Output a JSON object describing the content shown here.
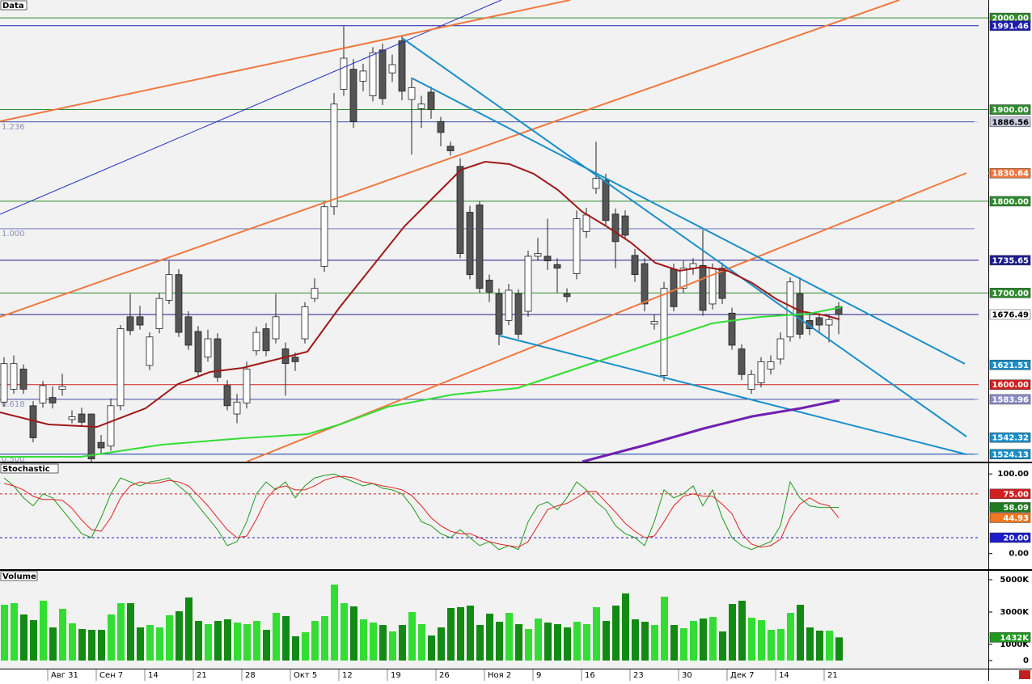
{
  "chart_data": [
    {
      "type": "candlestick",
      "title": "Data",
      "categories": [
        null,
        null,
        null,
        null,
        null,
        "Авг 31",
        null,
        null,
        null,
        null,
        "Сен 7",
        null,
        null,
        null,
        null,
        "14",
        null,
        null,
        null,
        null,
        "21",
        null,
        null,
        null,
        null,
        "28",
        null,
        null,
        null,
        null,
        "Окт 5",
        null,
        null,
        null,
        null,
        "12",
        null,
        null,
        null,
        null,
        "19",
        null,
        null,
        null,
        null,
        "26",
        null,
        null,
        null,
        null,
        "Ноя 2",
        null,
        null,
        null,
        null,
        "9",
        null,
        null,
        null,
        null,
        "16",
        null,
        null,
        null,
        null,
        "23",
        null,
        null,
        null,
        null,
        "30",
        null,
        null,
        null,
        null,
        "Дек 7",
        null,
        null,
        null,
        null,
        "14",
        null,
        null,
        null,
        null,
        "21",
        null
      ],
      "open": [
        1581,
        1595,
        1617,
        1577,
        1580,
        1586,
        1595,
        1562,
        1568,
        1568,
        1537,
        1533,
        1577,
        1674,
        1674,
        1621,
        1661,
        1692,
        1720,
        1674,
        1658,
        1630,
        1650,
        1599,
        1568,
        1580,
        1637,
        1661,
        1650,
        1639,
        1630,
        1650,
        1694,
        1729,
        1794,
        1922,
        1944,
        1931,
        1915,
        1965,
        1940,
        1975,
        1911,
        1901,
        1919,
        1887,
        1860,
        1838,
        1788,
        1796,
        1714,
        1699,
        1670,
        1699,
        1680,
        1740,
        1740,
        1731,
        1699,
        1721,
        1767,
        1814,
        1823,
        1786,
        1784,
        1741,
        1732,
        1666,
        1610,
        1726,
        1705,
        1727,
        1730,
        1688,
        1727,
        1678,
        1639,
        1595,
        1602,
        1617,
        1628,
        1652,
        1699,
        1670,
        1673,
        1665,
        1685
      ],
      "high": [
        1630,
        1632,
        1622,
        1582,
        1604,
        1598,
        1612,
        1572,
        1575,
        1568,
        1545,
        1585,
        1665,
        1699,
        1686,
        1657,
        1700,
        1735,
        1726,
        1680,
        1664,
        1660,
        1656,
        1605,
        1590,
        1625,
        1663,
        1667,
        1699,
        1646,
        1635,
        1690,
        1716,
        1800,
        1918,
        1991,
        1955,
        1950,
        1968,
        1972,
        1960,
        1980,
        1935,
        1915,
        1925,
        1892,
        1865,
        1847,
        1795,
        1800,
        1720,
        1705,
        1710,
        1704,
        1746,
        1760,
        1781,
        1738,
        1705,
        1790,
        1793,
        1865,
        1830,
        1792,
        1790,
        1748,
        1738,
        1676,
        1712,
        1732,
        1735,
        1738,
        1769,
        1732,
        1733,
        1684,
        1644,
        1616,
        1630,
        1632,
        1657,
        1717,
        1717,
        1676,
        1678,
        1676,
        1690
      ],
      "low": [
        1576,
        1590,
        1590,
        1537,
        1575,
        1574,
        1588,
        1558,
        1554,
        1516,
        1525,
        1528,
        1572,
        1654,
        1660,
        1616,
        1656,
        1688,
        1652,
        1638,
        1608,
        1625,
        1603,
        1572,
        1558,
        1574,
        1632,
        1631,
        1645,
        1588,
        1615,
        1645,
        1690,
        1723,
        1785,
        1915,
        1880,
        1920,
        1909,
        1905,
        1930,
        1910,
        1851,
        1880,
        1890,
        1860,
        1850,
        1738,
        1715,
        1700,
        1690,
        1643,
        1665,
        1650,
        1674,
        1735,
        1725,
        1700,
        1690,
        1715,
        1760,
        1808,
        1773,
        1727,
        1758,
        1712,
        1680,
        1660,
        1604,
        1680,
        1700,
        1720,
        1675,
        1682,
        1688,
        1638,
        1605,
        1590,
        1597,
        1611,
        1622,
        1647,
        1650,
        1654,
        1658,
        1646,
        1655
      ],
      "close": [
        1623,
        1623,
        1595,
        1542,
        1599,
        1580,
        1598,
        1565,
        1559,
        1519,
        1531,
        1577,
        1661,
        1659,
        1665,
        1652,
        1694,
        1720,
        1657,
        1643,
        1614,
        1650,
        1608,
        1577,
        1581,
        1617,
        1657,
        1637,
        1674,
        1623,
        1625,
        1685,
        1705,
        1794,
        1906,
        1956,
        1887,
        1942,
        1962,
        1912,
        1949,
        1920,
        1924,
        1906,
        1900,
        1875,
        1855,
        1743,
        1720,
        1705,
        1701,
        1655,
        1703,
        1655,
        1740,
        1743,
        1735,
        1727,
        1696,
        1781,
        1785,
        1825,
        1779,
        1756,
        1763,
        1720,
        1688,
        1669,
        1705,
        1685,
        1727,
        1732,
        1681,
        1727,
        1694,
        1643,
        1611,
        1611,
        1625,
        1625,
        1650,
        1712,
        1655,
        1661,
        1665,
        1671,
        1676.49
      ],
      "ylim": [
        1516,
        2019.5
      ],
      "yticks": [
        {
          "value": 1700,
          "label": "1700.00"
        },
        {
          "value": 1800,
          "label": "1800.00"
        },
        {
          "value": 1900,
          "label": "1900.00"
        },
        {
          "value": 2000,
          "label": "2000.00"
        }
      ],
      "grid_color": "#2e8b2e",
      "markers": [
        {
          "value": 1991.46,
          "label": "1991.46",
          "color": "#1c1cb0",
          "line": true
        },
        {
          "value": 1886.56,
          "label": "1886.56",
          "color": "#c8cce0",
          "line": true
        },
        {
          "value": 1830.64,
          "label": "1830.64",
          "color": "#f07840",
          "line": false
        },
        {
          "value": 1735.65,
          "label": "1735.65",
          "color": "#1c1c8c",
          "line": true
        },
        {
          "value": 1676.49,
          "label": "1676.49",
          "color": "#ffffff",
          "line": true
        },
        {
          "value": 1621.51,
          "label": "1621.51",
          "color": "#1a8fc8",
          "line": false
        },
        {
          "value": 1600,
          "label": "1600.00",
          "color": "#d02020",
          "line": true
        },
        {
          "value": 1583.96,
          "label": "1583.96",
          "color": "#8c8cc8",
          "line": true
        },
        {
          "value": 1542.32,
          "label": "1542.32",
          "color": "#1a8fc8",
          "line": false
        },
        {
          "value": 1524.13,
          "label": "1524.13",
          "color": "#1a8fc8",
          "line": true
        }
      ],
      "fib_levels": [
        {
          "value": 1886.56,
          "label": "1.236"
        },
        {
          "value": 1770,
          "label": "1.000"
        },
        {
          "value": 1583.96,
          "label": "0.618"
        },
        {
          "value": 1524.13,
          "label": "0.500"
        }
      ]
    },
    {
      "type": "line",
      "title": "Stochastic",
      "series": [
        {
          "color": "#1f9a1f",
          "values": [
            95,
            85,
            70,
            60,
            75,
            70,
            55,
            40,
            25,
            20,
            45,
            75,
            95,
            90,
            85,
            90,
            92,
            95,
            85,
            75,
            60,
            45,
            30,
            10,
            15,
            40,
            75,
            90,
            80,
            90,
            70,
            85,
            95,
            98,
            100,
            95,
            90,
            85,
            88,
            82,
            80,
            75,
            60,
            40,
            35,
            25,
            20,
            30,
            20,
            10,
            15,
            5,
            10,
            5,
            40,
            60,
            65,
            55,
            70,
            90,
            80,
            65,
            55,
            35,
            25,
            20,
            10,
            40,
            80,
            70,
            75,
            85,
            60,
            80,
            45,
            20,
            10,
            5,
            10,
            15,
            35,
            90,
            70,
            60,
            58,
            58,
            58.09
          ]
        },
        {
          "color": "#e02020",
          "values": [
            88,
            85,
            80,
            72,
            68,
            68,
            67,
            57,
            42,
            30,
            28,
            45,
            70,
            85,
            90,
            88,
            89,
            92,
            90,
            85,
            73,
            60,
            45,
            30,
            20,
            22,
            43,
            68,
            82,
            85,
            80,
            80,
            85,
            92,
            96,
            97,
            95,
            90,
            88,
            85,
            83,
            80,
            73,
            60,
            45,
            35,
            28,
            25,
            25,
            20,
            15,
            12,
            10,
            8,
            15,
            35,
            55,
            60,
            63,
            70,
            78,
            78,
            65,
            52,
            38,
            28,
            20,
            22,
            40,
            60,
            72,
            75,
            72,
            72,
            62,
            50,
            25,
            12,
            8,
            10,
            18,
            45,
            62,
            70,
            63,
            60,
            44.93
          ]
        }
      ],
      "ylim": [
        -19.6,
        113.4
      ],
      "yticks": [
        {
          "value": 0,
          "label": "0.00"
        },
        {
          "value": 100,
          "label": "100.00"
        }
      ],
      "markers": [
        {
          "value": 75,
          "label": "75.00",
          "color": "#d02020",
          "line": true
        },
        {
          "value": 58.09,
          "label": "58.09",
          "color": "#1f7a1f",
          "line": false
        },
        {
          "value": 44.93,
          "label": "44.93",
          "color": "#f07820",
          "line": false
        },
        {
          "value": 20,
          "label": "20.00",
          "color": "#1c1cc8",
          "line": true
        }
      ]
    },
    {
      "type": "bar",
      "title": "Volume",
      "values": [
        3450,
        3550,
        2850,
        2500,
        3700,
        2050,
        3200,
        2300,
        1950,
        1900,
        1900,
        2850,
        3550,
        3550,
        2050,
        2200,
        2050,
        2800,
        3050,
        3900,
        2450,
        2250,
        2450,
        2550,
        2350,
        2250,
        2450,
        1900,
        2950,
        2750,
        1500,
        1750,
        2450,
        2750,
        4700,
        3550,
        3350,
        2550,
        2350,
        2200,
        1800,
        2200,
        3000,
        2250,
        1550,
        2050,
        3250,
        3300,
        3400,
        2200,
        2900,
        2400,
        2950,
        2250,
        1950,
        2600,
        2350,
        2250,
        2050,
        2400,
        2250,
        3300,
        2450,
        3400,
        4150,
        2550,
        2400,
        2200,
        3950,
        2200,
        2000,
        2450,
        2600,
        2700,
        1800,
        3500,
        3700,
        2650,
        2500,
        1900,
        1950,
        2950,
        3450,
        2050,
        1850,
        1850,
        1432
      ],
      "up_color": "#33dd33",
      "down_color": "#138a13",
      "ylim": [
        -500,
        5550
      ],
      "yticks": [
        0,
        {
          "value": 1000,
          "label": "1000K"
        },
        {
          "value": 3000,
          "label": "3000K"
        },
        {
          "value": 5000,
          "label": "5000K"
        }
      ],
      "markers": [
        {
          "value": 1432,
          "label": "1432K",
          "color": "#1f9a1f",
          "line": false
        }
      ]
    }
  ]
}
